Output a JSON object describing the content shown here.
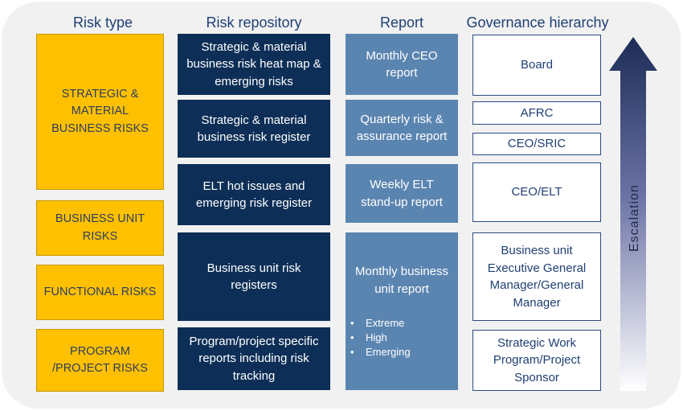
{
  "headers": {
    "risk_type": "Risk type",
    "risk_repository": "Risk repository",
    "report": "Report",
    "governance": "Governance hierarchy"
  },
  "risk_types": [
    {
      "line1": "STRATEGIC &",
      "line2": "MATERIAL",
      "line3": "BUSINESS RISKS"
    },
    {
      "line1": "BUSINESS UNIT",
      "line2": "RISKS"
    },
    {
      "line1": "FUNCTIONAL RISKS"
    },
    {
      "line1": "PROGRAM",
      "line2": "/PROJECT RISKS"
    }
  ],
  "repositories": [
    {
      "line1": "Strategic & material",
      "line2": "business risk heat map &",
      "line3": "emerging risks"
    },
    {
      "line1": "Strategic & material",
      "line2": "business risk register"
    },
    {
      "line1": "ELT hot issues and",
      "line2": "emerging risk register"
    },
    {
      "line1": "Business unit risk",
      "line2": "registers"
    },
    {
      "line1": "Program/project specific",
      "line2": "reports including risk",
      "line3": "tracking"
    }
  ],
  "reports": [
    {
      "line1": "Monthly CEO",
      "line2": "report"
    },
    {
      "line1": "Quarterly risk &",
      "line2": "assurance report"
    },
    {
      "line1": "Weekly ELT",
      "line2": "stand-up report"
    },
    {
      "line1": "Monthly business",
      "line2": "unit report",
      "bullets": [
        "Extreme",
        "High",
        "Emerging"
      ]
    }
  ],
  "governance": [
    {
      "line1": "Board"
    },
    {
      "line1": "AFRC"
    },
    {
      "line1": "CEO/SRIC"
    },
    {
      "line1": "CEO/ELT"
    },
    {
      "line1": "Business unit",
      "line2": "Executive General",
      "line3": "Manager/General",
      "line4": "Manager"
    },
    {
      "line1": "Strategic Work",
      "line2": "Program/Project",
      "line3": "Sponsor"
    }
  ],
  "escalation_label": "Escalation",
  "colors": {
    "risk_type_fill": "#ffc000",
    "repository_fill": "#0d2f57",
    "report_fill": "#5b85b1",
    "governance_border": "#2a4b80",
    "arrow_top": "#1c2c55"
  }
}
